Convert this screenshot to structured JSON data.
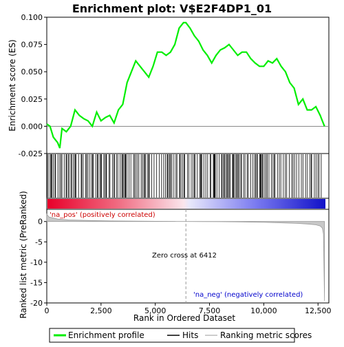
{
  "chart_data": {
    "type": "line",
    "title": "Enrichment plot: V$E2F4DP1_01",
    "xlabel": "Rank in Ordered Dataset",
    "top_panel": {
      "ylabel": "Enrichment score (ES)",
      "ylim": [
        -0.025,
        0.1
      ],
      "yticks": [
        "-0.025",
        "0.000",
        "0.025",
        "0.050",
        "0.075",
        "0.100"
      ],
      "series_color": "#00ee00",
      "enrichment_profile": {
        "x": [
          0,
          150,
          300,
          500,
          600,
          700,
          900,
          1100,
          1300,
          1500,
          1700,
          1900,
          2100,
          2300,
          2500,
          2700,
          2900,
          3100,
          3300,
          3500,
          3700,
          3900,
          4100,
          4300,
          4500,
          4700,
          4900,
          5100,
          5300,
          5500,
          5700,
          5900,
          6100,
          6300,
          6412,
          6600,
          6800,
          7000,
          7200,
          7400,
          7600,
          7800,
          8000,
          8200,
          8400,
          8600,
          8800,
          9000,
          9200,
          9400,
          9600,
          9800,
          10000,
          10200,
          10400,
          10600,
          10800,
          11000,
          11200,
          11400,
          11600,
          11800,
          12000,
          12200,
          12400,
          12600,
          12700,
          12800
        ],
        "y": [
          0.002,
          0.0,
          -0.01,
          -0.015,
          -0.02,
          -0.002,
          -0.005,
          0.0,
          0.015,
          0.01,
          0.007,
          0.005,
          0.0,
          0.013,
          0.005,
          0.008,
          0.01,
          0.003,
          0.015,
          0.02,
          0.04,
          0.05,
          0.06,
          0.055,
          0.05,
          0.045,
          0.055,
          0.068,
          0.068,
          0.065,
          0.068,
          0.075,
          0.09,
          0.095,
          0.095,
          0.09,
          0.083,
          0.078,
          0.07,
          0.065,
          0.058,
          0.065,
          0.07,
          0.072,
          0.075,
          0.07,
          0.065,
          0.068,
          0.068,
          0.062,
          0.058,
          0.055,
          0.055,
          0.06,
          0.058,
          0.062,
          0.055,
          0.05,
          0.04,
          0.035,
          0.02,
          0.025,
          0.015,
          0.015,
          0.018,
          0.01,
          0.005,
          0.0
        ]
      }
    },
    "bottom_panel": {
      "ylabel": "Ranked list metric (PreRanked)",
      "ylim": [
        -20,
        3
      ],
      "yticks": [
        "0",
        "-5",
        "-10",
        "-15",
        "-20"
      ],
      "metric_line": {
        "x": [
          0,
          100,
          500,
          1000,
          2000,
          3000,
          4000,
          5000,
          6000,
          6412,
          7000,
          8000,
          9000,
          10000,
          11000,
          11500,
          12000,
          12400,
          12600,
          12700,
          12750,
          12800
        ],
        "y": [
          1.8,
          1.1,
          0.6,
          0.4,
          0.25,
          0.15,
          0.1,
          0.05,
          0.02,
          0.0,
          -0.02,
          -0.05,
          -0.1,
          -0.2,
          -0.35,
          -0.45,
          -0.6,
          -0.8,
          -1.1,
          -1.6,
          -3.0,
          -19.5
        ]
      },
      "zero_cross_label": "Zero cross at 6412",
      "zero_cross_x": 6412,
      "pos_label": "'na_pos' (positively correlated)",
      "neg_label": "'na_neg' (negatively correlated)",
      "pos_label_color": "#cc0000",
      "neg_label_color": "#0000cc"
    },
    "x_axis": {
      "xlim": [
        0,
        13000
      ],
      "xticks": [
        "0",
        "2,500",
        "5,000",
        "7,500",
        "10,000",
        "12,500"
      ]
    },
    "legend": {
      "placement": "bottom",
      "items": [
        "Enrichment profile",
        "Hits",
        "Ranking metric scores"
      ]
    }
  }
}
